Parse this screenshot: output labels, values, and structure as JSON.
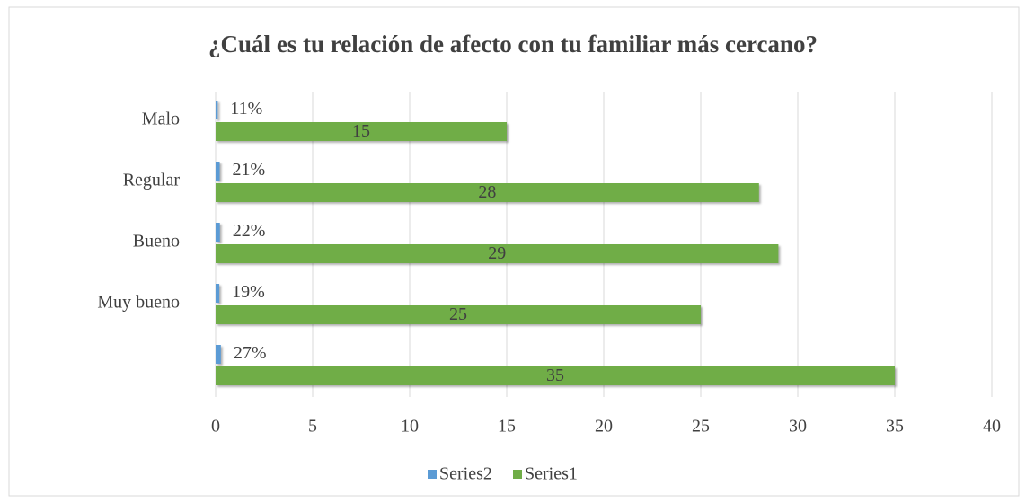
{
  "chart_data": {
    "type": "hbar",
    "title": "¿Cuál es tu relación de afecto con tu familiar más cercano?",
    "categories": [
      "Malo",
      "Regular",
      "Bueno",
      "Muy bueno",
      null
    ],
    "series": [
      {
        "name": "Series2",
        "color": "#5b9bd5",
        "values": [
          0.11,
          0.21,
          0.22,
          0.19,
          0.27
        ],
        "value_labels": [
          "11%",
          "21%",
          "22%",
          "19%",
          "27%"
        ]
      },
      {
        "name": "Series1",
        "color": "#70ad47",
        "values": [
          15,
          28,
          29,
          25,
          35
        ]
      }
    ],
    "xlim": [
      0,
      40
    ],
    "xticks": [
      0,
      5,
      10,
      15,
      20,
      25,
      30,
      35,
      40
    ],
    "grid": true,
    "legend": "bottom"
  }
}
